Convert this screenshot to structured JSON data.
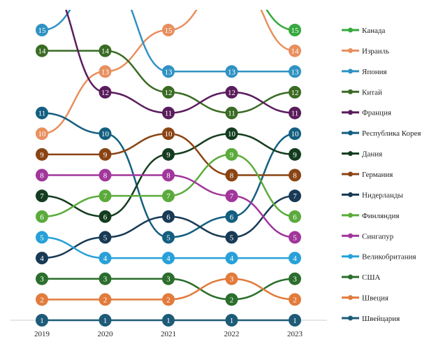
{
  "chart_data": {
    "type": "line",
    "subtype": "bump",
    "title": "",
    "xlabel": "",
    "ylabel": "",
    "x": [
      "2019",
      "2020",
      "2021",
      "2022",
      "2023"
    ],
    "ylim": [
      1,
      15
    ],
    "grid": false,
    "legend": "right",
    "series": [
      {
        "name": "Канада",
        "color": "#36a83e",
        "values": [
          null,
          null,
          null,
          null,
          15
        ]
      },
      {
        "name": "Израиль",
        "color": "#e88f5e",
        "values": [
          10,
          13,
          15,
          null,
          14
        ]
      },
      {
        "name": "Япония",
        "color": "#2f92c2",
        "values": [
          15,
          null,
          13,
          13,
          13
        ]
      },
      {
        "name": "Китай",
        "color": "#3a6b24",
        "values": [
          14,
          14,
          12,
          11,
          12
        ]
      },
      {
        "name": "Франция",
        "color": "#5a1c5c",
        "values": [
          null,
          12,
          11,
          12,
          11
        ]
      },
      {
        "name": "Республика Корея",
        "color": "#145f80",
        "values": [
          11,
          10,
          5,
          6,
          10
        ]
      },
      {
        "name": "Дания",
        "color": "#143d1f",
        "values": [
          7,
          6,
          9,
          10,
          9
        ]
      },
      {
        "name": "Германия",
        "color": "#8a4414",
        "values": [
          9,
          9,
          10,
          8,
          8
        ]
      },
      {
        "name": "Нидерланды",
        "color": "#183a55",
        "values": [
          4,
          5,
          6,
          5,
          7
        ]
      },
      {
        "name": "Финляндия",
        "color": "#5bab3c",
        "values": [
          6,
          7,
          7,
          9,
          6
        ]
      },
      {
        "name": "Сингапур",
        "color": "#a1369b",
        "values": [
          8,
          8,
          8,
          7,
          5
        ]
      },
      {
        "name": "Великобритания",
        "color": "#27a1d8",
        "values": [
          5,
          4,
          4,
          4,
          4
        ]
      },
      {
        "name": "США",
        "color": "#2b6e2d",
        "values": [
          3,
          3,
          3,
          2,
          3
        ]
      },
      {
        "name": "Швеция",
        "color": "#e27b3c",
        "values": [
          2,
          2,
          2,
          3,
          2
        ]
      },
      {
        "name": "Швейцария",
        "color": "#1d5b78",
        "values": [
          1,
          1,
          1,
          1,
          1
        ]
      }
    ]
  }
}
